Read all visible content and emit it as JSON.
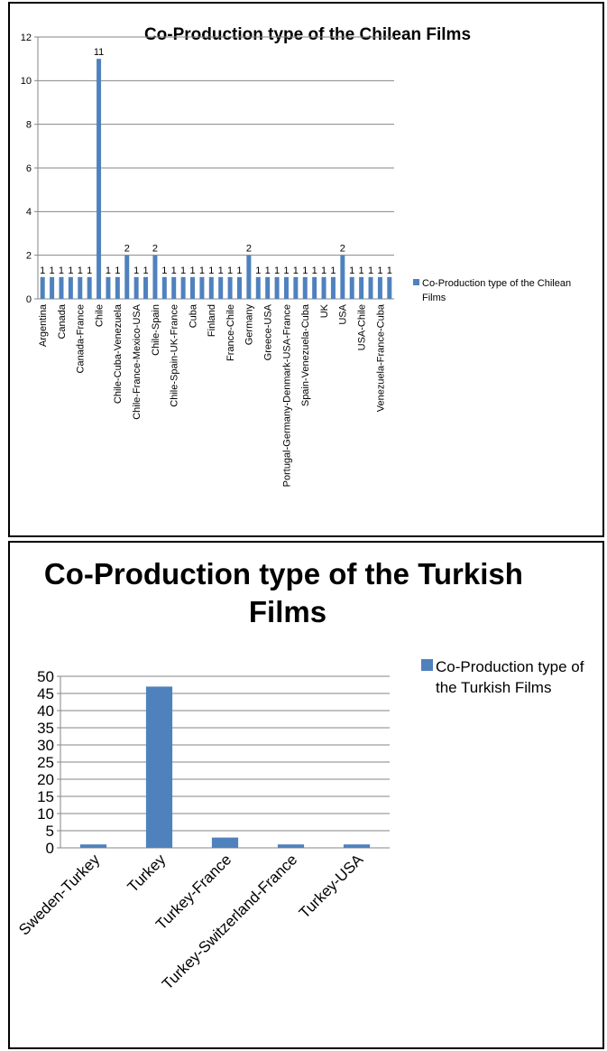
{
  "colors": {
    "bar": "#4F81BD",
    "grid": "#868686",
    "axis": "#868686",
    "text": "#000000"
  },
  "chart_data": [
    {
      "type": "bar",
      "title": "Co-Production type of the Chilean Films",
      "xlabel": "",
      "ylabel": "",
      "ylim": [
        0,
        12
      ],
      "yticks": [
        0,
        2,
        4,
        6,
        8,
        10,
        12
      ],
      "grid": true,
      "legend_position": "right",
      "categories": [
        "Argentina",
        "",
        "Canada",
        "",
        "Canada-France",
        "",
        "Chile",
        "",
        "Chile-Cuba-Venezuela",
        "",
        "Chile-France-Mexico-USA",
        "",
        "Chile-Spain",
        "",
        "Chile-Spain-UK-France",
        "",
        "Cuba",
        "",
        "Finland",
        "",
        "France-Chile",
        "",
        "Germany",
        "",
        "Greece-USA",
        "",
        "Portugal-Germany-Denmark-USA-France",
        "",
        "Spain-Venezuela-Cuba",
        "",
        "UK",
        "",
        "USA",
        "",
        "USA-Chile",
        "",
        "Venezuela-France-Cuba",
        ""
      ],
      "series": [
        {
          "name": "Co-Production type of the Chilean Films",
          "values": [
            1,
            1,
            1,
            1,
            1,
            1,
            11,
            1,
            1,
            2,
            1,
            1,
            2,
            1,
            1,
            1,
            1,
            1,
            1,
            1,
            1,
            1,
            2,
            1,
            1,
            1,
            1,
            1,
            1,
            1,
            1,
            1,
            2,
            1,
            1,
            1,
            1,
            1
          ]
        }
      ],
      "data_labels": true
    },
    {
      "type": "bar",
      "title": "Co-Production type of the Turkish Films",
      "xlabel": "",
      "ylabel": "",
      "ylim": [
        0,
        50
      ],
      "yticks": [
        0,
        5,
        10,
        15,
        20,
        25,
        30,
        35,
        40,
        45,
        50
      ],
      "grid": true,
      "legend_position": "right",
      "categories": [
        "Sweden-Turkey",
        "Turkey",
        "Turkey-France",
        "Turkey-Switzerland-France",
        "Turkey-USA"
      ],
      "series": [
        {
          "name": "Co-Production type of the Turkish Films",
          "values": [
            1,
            47,
            3,
            1,
            1
          ]
        }
      ],
      "data_labels": false
    }
  ]
}
